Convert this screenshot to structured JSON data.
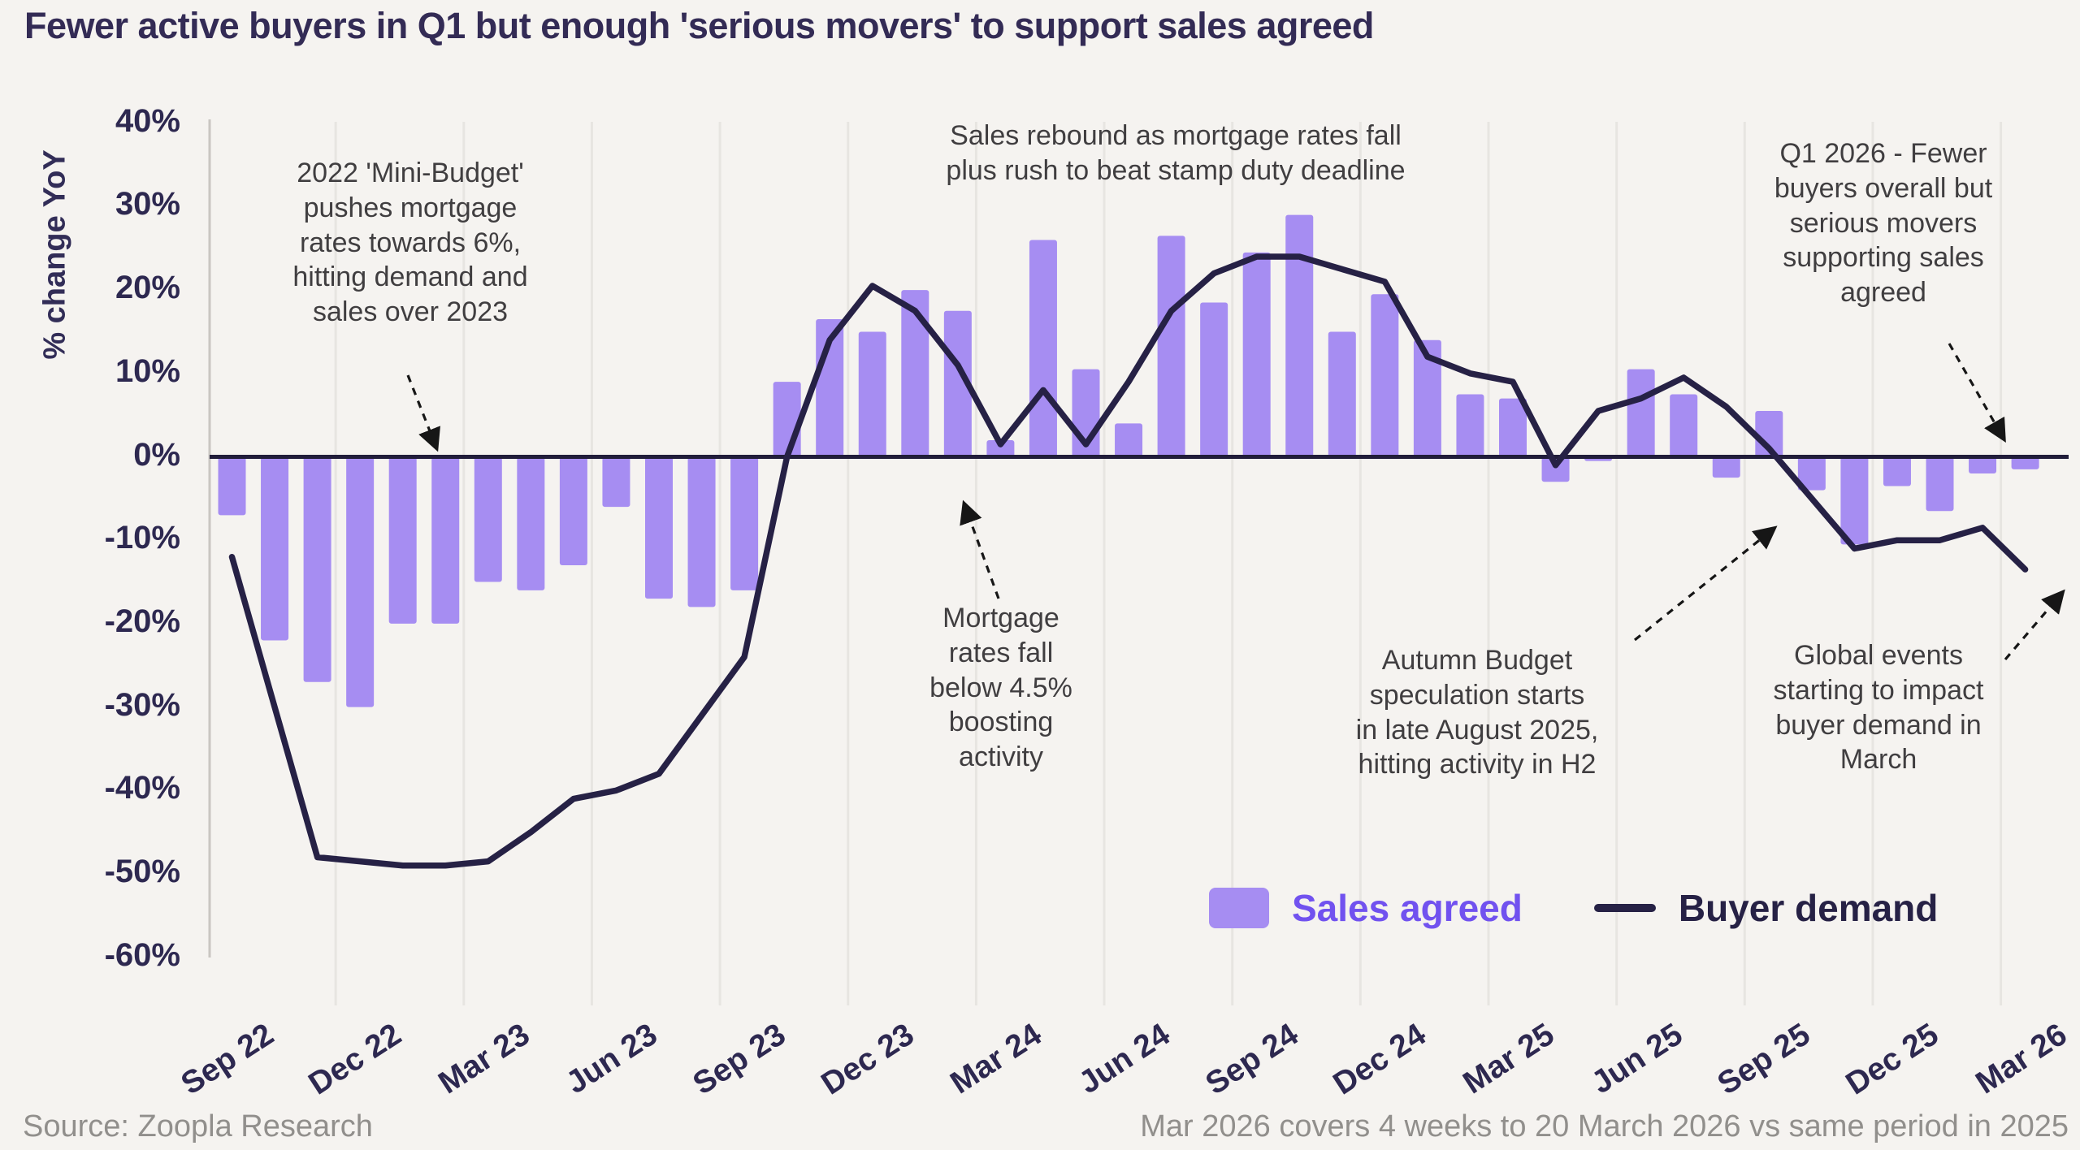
{
  "title": "Fewer active buyers in Q1 but enough 'serious movers' to support sales agreed",
  "y_axis_label": "% change YoY",
  "footer": {
    "source": "Source: Zoopla Research",
    "note": "Mar 2026 covers 4 weeks to 20 March 2026 vs same period in 2025"
  },
  "legend": {
    "sales_label": "Sales agreed",
    "buyer_label": "Buyer demand"
  },
  "colors": {
    "background": "#f5f3f0",
    "bar": "#a68df2",
    "line": "#262145",
    "legend_sales_text": "#7152ef",
    "navy_text": "#2d2850",
    "annotation_text": "#403e40",
    "gridline": "#e7e5e1",
    "axis": "#c9c6c2",
    "zero_line": "#211d3a",
    "footer_text": "#918f8c"
  },
  "chart_data": {
    "type": "combo (bar + line)",
    "title": "Fewer active buyers in Q1 but enough 'serious movers' to support sales agreed",
    "ylabel": "% change YoY",
    "ylim": [
      -60,
      40
    ],
    "ytick_step": 10,
    "yticks": [
      "40%",
      "30%",
      "20%",
      "10%",
      "0%",
      "-10%",
      "-20%",
      "-30%",
      "-40%",
      "-50%",
      "-60%"
    ],
    "grid": "vertical quarterly gridlines",
    "legend_position": "bottom-right inside plot",
    "categories": [
      "Sep 22",
      "Oct 22",
      "Nov 22",
      "Dec 22",
      "Jan 23",
      "Feb 23",
      "Mar 23",
      "Apr 23",
      "May 23",
      "Jun 23",
      "Jul 23",
      "Aug 23",
      "Sep 23",
      "Oct 23",
      "Nov 23",
      "Dec 23",
      "Jan 24",
      "Feb 24",
      "Mar 24",
      "Apr 24",
      "May 24",
      "Jun 24",
      "Jul 24",
      "Aug 24",
      "Sep 24",
      "Oct 24",
      "Nov 24",
      "Dec 24",
      "Jan 25",
      "Feb 25",
      "Mar 25",
      "Apr 25",
      "May 25",
      "Jun 25",
      "Jul 25",
      "Aug 25",
      "Sep 25",
      "Oct 25",
      "Nov 25",
      "Dec 25",
      "Jan 26",
      "Feb 26",
      "Mar 26"
    ],
    "xtick_shown_every": 3,
    "series": [
      {
        "name": "Sales agreed",
        "type": "bar",
        "values": [
          -7,
          -22,
          -27,
          -30,
          -20,
          -20,
          -15,
          -16,
          -13,
          -6,
          -17,
          -18,
          -16,
          9,
          16.5,
          15,
          20,
          17.5,
          2,
          26,
          10.5,
          4,
          26.5,
          18.5,
          24.5,
          29,
          15,
          19.5,
          14,
          7.5,
          7,
          -3,
          -0.5,
          10.5,
          7.5,
          -2.5,
          5.5,
          -4,
          -10.5,
          -3.5,
          -6.5,
          -2,
          -1.5
        ]
      },
      {
        "name": "Buyer demand",
        "type": "line",
        "values": [
          -12,
          -30,
          -48,
          -48.5,
          -49,
          -49,
          -48.5,
          -45,
          -41,
          -40,
          -38,
          -31,
          -24,
          0,
          14,
          20.5,
          17.5,
          11,
          1.5,
          8,
          1.5,
          9,
          17.5,
          22,
          24,
          24,
          22.5,
          21,
          12,
          10,
          9,
          -1,
          5.5,
          7,
          9.5,
          6,
          1,
          -5,
          -11,
          -10,
          -10,
          -8.5,
          -13.5
        ]
      }
    ],
    "annotations": [
      {
        "id": "mini-budget",
        "text": "2022 'Mini-Budget'\npushes mortgage\nrates towards 6%,\nhitting demand and\nsales over 2023"
      },
      {
        "id": "sales-rebound",
        "text": "Sales rebound as mortgage rates fall\nplus rush to beat stamp duty deadline"
      },
      {
        "id": "rates-fall",
        "text": "Mortgage\nrates fall\nbelow 4.5%\nboosting\nactivity"
      },
      {
        "id": "autumn-budget",
        "text": "Autumn Budget\nspeculation starts\nin late August 2025,\nhitting activity in H2"
      },
      {
        "id": "q1-2026",
        "text": "Q1 2026 - Fewer\nbuyers overall but\nserious movers\nsupporting sales\nagreed"
      },
      {
        "id": "global-events",
        "text": "Global events\nstarting to impact\nbuyer demand in\nMarch"
      }
    ]
  }
}
